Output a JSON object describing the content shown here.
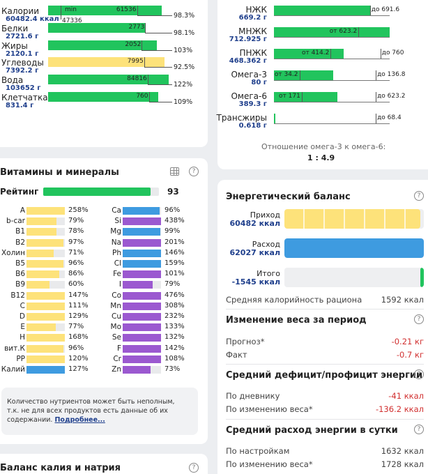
{
  "colors": {
    "green": "#21c45d",
    "yellow": "#fde27a",
    "blue": "#3e9be0",
    "purple": "#9b59d0",
    "navy": "#1f3f8c",
    "red": "#d13030"
  },
  "macros": [
    {
      "label": "Калории",
      "sub": "60482.4 ккал",
      "pct": "98.3%",
      "fill": 0.96,
      "color": "green",
      "mark": 0.75,
      "markText": "61536",
      "inner": "min",
      "below": "47336"
    },
    {
      "label": "Белки",
      "sub": "2721.6 г",
      "pct": "98.1%",
      "fill": 0.82,
      "color": "green",
      "mark": 0.82,
      "markText": "2773"
    },
    {
      "label": "Жиры",
      "sub": "2120.1 г",
      "pct": "103%",
      "fill": 0.92,
      "color": "green",
      "mark": 0.79,
      "markText": "2052"
    },
    {
      "label": "Углеводы",
      "sub": "7392.2 г",
      "pct": "92.5%",
      "fill": 0.98,
      "color": "yellow",
      "mark": 0.81,
      "markText": "7995"
    },
    {
      "label": "Вода",
      "sub": "103652 г",
      "pct": "122%",
      "fill": 1.02,
      "color": "green",
      "mark": 0.84,
      "markText": "84816"
    },
    {
      "label": "Клетчатка",
      "sub": "831.4 г",
      "pct": "109%",
      "fill": 0.93,
      "color": "green",
      "mark": 0.85,
      "markText": "760"
    }
  ],
  "fats": [
    {
      "label": "НЖК",
      "sub": "669.2 г",
      "fill": 0.83,
      "texts": [
        {
          "t": "до 691.6",
          "x": 0.83
        }
      ]
    },
    {
      "label": "МНЖК",
      "sub": "712.925 г",
      "fill": 1.0,
      "texts": [
        {
          "t": "от 623.2",
          "x": 0.73
        }
      ]
    },
    {
      "label": "ПНЖК",
      "sub": "468.362 г",
      "fill": 0.6,
      "texts": [
        {
          "t": "от 414.2",
          "x": 0.49
        },
        {
          "t": "до 760",
          "x": 0.92
        }
      ]
    },
    {
      "label": "Омега-3",
      "sub": "80 г",
      "fill": 0.51,
      "texts": [
        {
          "t": "от 34.2",
          "x": 0.22
        },
        {
          "t": "до 136.8",
          "x": 0.88
        }
      ]
    },
    {
      "label": "Омега-6",
      "sub": "389.3 г",
      "fill": 0.55,
      "texts": [
        {
          "t": "от 171",
          "x": 0.24
        },
        {
          "t": "до 623.2",
          "x": 0.88
        }
      ]
    },
    {
      "label": "Трансжиры",
      "sub": "0.618 г",
      "fill": 0.005,
      "texts": [
        {
          "t": "до 68.4",
          "x": 0.88
        }
      ]
    }
  ],
  "ratio": {
    "label": "Отношение омега-3 к омега-6:",
    "value": "1 : 4.9"
  },
  "vitamins": {
    "title": "Витамины и минералы",
    "rating_label": "Рейтинг",
    "rating_value": "93",
    "rating_fill": 0.93,
    "left": [
      {
        "n": "A",
        "p": "258%",
        "f": 1.0,
        "c": "yellow"
      },
      {
        "n": "b-car",
        "p": "79%",
        "f": 0.79,
        "c": "yellow"
      },
      {
        "n": "B1",
        "p": "78%",
        "f": 0.78,
        "c": "yellow"
      },
      {
        "n": "B2",
        "p": "97%",
        "f": 0.97,
        "c": "yellow"
      },
      {
        "n": "Холин",
        "p": "71%",
        "f": 0.71,
        "c": "yellow"
      },
      {
        "n": "B5",
        "p": "96%",
        "f": 0.96,
        "c": "yellow"
      },
      {
        "n": "B6",
        "p": "86%",
        "f": 0.86,
        "c": "yellow"
      },
      {
        "n": "B9",
        "p": "60%",
        "f": 0.6,
        "c": "yellow"
      },
      {
        "n": "B12",
        "p": "147%",
        "f": 1.0,
        "c": "yellow"
      },
      {
        "n": "C",
        "p": "111%",
        "f": 1.0,
        "c": "yellow"
      },
      {
        "n": "D",
        "p": "129%",
        "f": 1.0,
        "c": "yellow"
      },
      {
        "n": "E",
        "p": "77%",
        "f": 0.77,
        "c": "yellow"
      },
      {
        "n": "H",
        "p": "168%",
        "f": 1.0,
        "c": "yellow"
      },
      {
        "n": "вит.К",
        "p": "96%",
        "f": 0.96,
        "c": "yellow"
      },
      {
        "n": "PP",
        "p": "120%",
        "f": 1.0,
        "c": "yellow"
      },
      {
        "n": "Калий",
        "p": "127%",
        "f": 1.0,
        "c": "blue"
      }
    ],
    "right": [
      {
        "n": "Ca",
        "p": "96%",
        "f": 0.96,
        "c": "blue"
      },
      {
        "n": "Si",
        "p": "438%",
        "f": 1.0,
        "c": "purple"
      },
      {
        "n": "Mg",
        "p": "99%",
        "f": 0.99,
        "c": "blue"
      },
      {
        "n": "Na",
        "p": "201%",
        "f": 1.0,
        "c": "purple"
      },
      {
        "n": "Ph",
        "p": "146%",
        "f": 1.0,
        "c": "blue"
      },
      {
        "n": "Cl",
        "p": "159%",
        "f": 1.0,
        "c": "blue"
      },
      {
        "n": "Fe",
        "p": "101%",
        "f": 1.0,
        "c": "purple"
      },
      {
        "n": "I",
        "p": "79%",
        "f": 0.79,
        "c": "purple"
      },
      {
        "n": "Co",
        "p": "476%",
        "f": 1.0,
        "c": "purple"
      },
      {
        "n": "Mn",
        "p": "308%",
        "f": 1.0,
        "c": "purple"
      },
      {
        "n": "Cu",
        "p": "232%",
        "f": 1.0,
        "c": "purple"
      },
      {
        "n": "Mo",
        "p": "133%",
        "f": 1.0,
        "c": "purple"
      },
      {
        "n": "Se",
        "p": "132%",
        "f": 1.0,
        "c": "purple"
      },
      {
        "n": "F",
        "p": "142%",
        "f": 1.0,
        "c": "purple"
      },
      {
        "n": "Cr",
        "p": "108%",
        "f": 1.0,
        "c": "purple"
      },
      {
        "n": "Zn",
        "p": "73%",
        "f": 0.73,
        "c": "purple"
      }
    ],
    "note": "Количество нутриентов может быть неполным, т.к. не для всех продуктов есть данные об их содержании.",
    "note_link": "Подробнее..."
  },
  "potassium": {
    "title": "Баланс калия и натрия"
  },
  "energy": {
    "title": "Энергетический баланс",
    "bars": [
      {
        "label": "Приход",
        "value": "60482 ккал",
        "fill": 0.975,
        "color": "yellow"
      },
      {
        "label": "Расход",
        "value": "62027 ккал",
        "fill": 1.0,
        "color": "blue"
      },
      {
        "label": "Итого",
        "value": "-1545 ккал",
        "fill": 0.025,
        "color": "green"
      }
    ],
    "avg_label": "Средняя калорийность рациона",
    "avg_value": "1592 ккал",
    "weight_title": "Изменение веса за период",
    "forecast_label": "Прогноз*",
    "forecast_value": "-0.21 кг",
    "fact_label": "Факт",
    "fact_value": "-0.7 кг",
    "deficit_title": "Средний дефицит/профицит энергии",
    "diary_label": "По дневнику",
    "diary_value": "-41 ккал",
    "weightchange_label": "По изменению веса*",
    "weightchange_value": "-136.2 ккал",
    "daily_title": "Средний расход энергии в сутки",
    "settings_label": "По настройкам",
    "settings_value": "1632 ккал",
    "daily_weight_label": "По изменению веса*",
    "daily_weight_value": "1728 ккал"
  }
}
